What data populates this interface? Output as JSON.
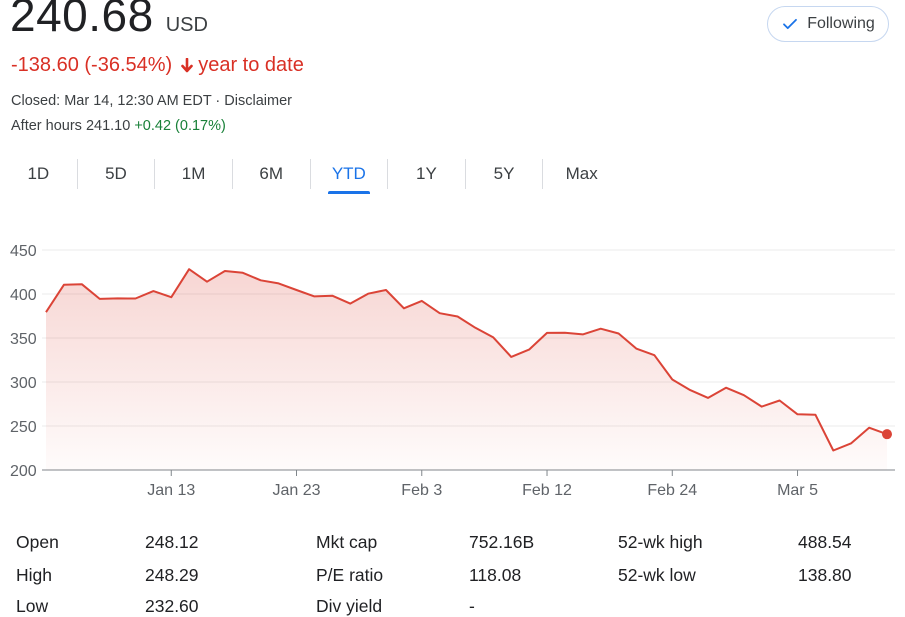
{
  "quote": {
    "price": "240.68",
    "currency": "USD",
    "change": "-138.60 (-36.54%)",
    "change_period": "year to date",
    "closed_text": "Closed: Mar 14, 12:30 AM EDT · ",
    "disclaimer": "Disclaimer",
    "after_hours_label": "After hours 241.10 ",
    "after_hours_change": "+0.42 (0.17%)"
  },
  "follow_button": {
    "label": "Following",
    "icon": "check-icon"
  },
  "tabs": [
    "1D",
    "5D",
    "1M",
    "6M",
    "YTD",
    "1Y",
    "5Y",
    "Max"
  ],
  "active_tab": "YTD",
  "colors": {
    "negative": "#d93025",
    "positive": "#188038",
    "accent": "#1a73e8",
    "line": "#db4437"
  },
  "chart_data": {
    "type": "area",
    "y_ticks": [
      "450",
      "400",
      "350",
      "300",
      "250",
      "200"
    ],
    "ylim": [
      200,
      450
    ],
    "x_tick_labels": [
      "Jan 13",
      "Jan 23",
      "Feb 3",
      "Feb 12",
      "Feb 24",
      "Mar 5"
    ],
    "x_tick_index": [
      7,
      14,
      21,
      28,
      35,
      42
    ],
    "values": [
      379.3,
      410.4,
      411.1,
      394.4,
      395.0,
      394.9,
      403.3,
      396.4,
      428.2,
      414.0,
      426.1,
      424.1,
      415.6,
      412.1,
      404.6,
      397.3,
      398.1,
      389.1,
      400.3,
      404.6,
      383.7,
      392.2,
      378.2,
      374.4,
      361.6,
      350.7,
      328.5,
      336.8,
      355.8,
      355.9,
      354.1,
      360.6,
      355.1,
      337.8,
      330.5,
      302.8,
      290.8,
      281.9,
      293.5,
      285.0,
      272.0,
      279.0,
      263.3,
      262.8,
      222.2,
      230.3,
      248.1,
      240.7
    ],
    "grid": true,
    "last_point_marker": true
  },
  "stats": [
    [
      {
        "label": "Open",
        "value": "248.12"
      },
      {
        "label": "Mkt cap",
        "value": "752.16B"
      },
      {
        "label": "52-wk high",
        "value": "488.54"
      }
    ],
    [
      {
        "label": "High",
        "value": "248.29"
      },
      {
        "label": "P/E ratio",
        "value": "118.08"
      },
      {
        "label": "52-wk low",
        "value": "138.80"
      }
    ],
    [
      {
        "label": "Low",
        "value": "232.60"
      },
      {
        "label": "Div yield",
        "value": "-"
      },
      {
        "label": "",
        "value": ""
      }
    ]
  ]
}
